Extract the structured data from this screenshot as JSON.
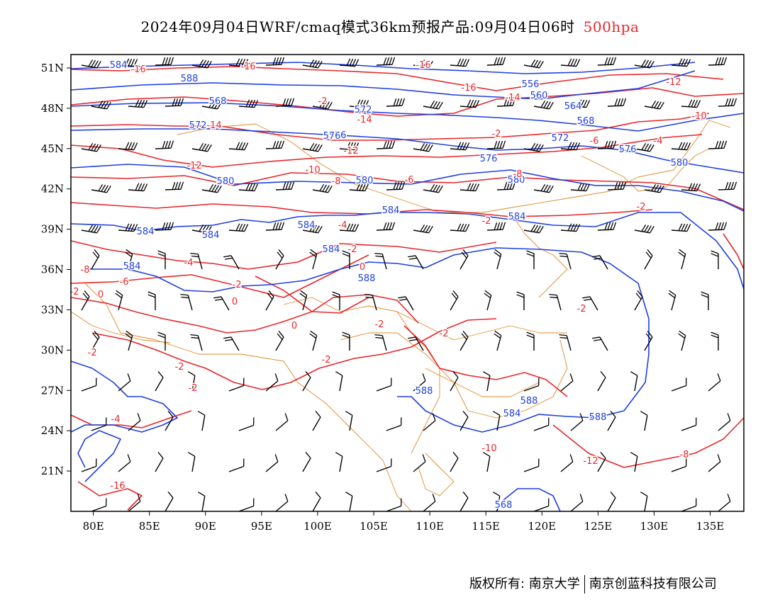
{
  "header": {
    "title": "2024年09月04日WRF/cmaq模式36km预报产品:09月04日06时",
    "level": "500hpa"
  },
  "map": {
    "lon_range": [
      78,
      138
    ],
    "lat_range": [
      18,
      52
    ],
    "x_ticks": [
      "80E",
      "85E",
      "90E",
      "95E",
      "100E",
      "105E",
      "110E",
      "115E",
      "120E",
      "125E",
      "130E",
      "135E"
    ],
    "y_ticks": [
      "51N",
      "48N",
      "45N",
      "42N",
      "39N",
      "36N",
      "33N",
      "30N",
      "27N",
      "24N",
      "21N"
    ],
    "colors": {
      "height_contour": "#1f3fe0",
      "temperature_contour": "#e8262a",
      "wind_barb": "#000000",
      "boundary": "#e0892a"
    },
    "height_labels": [
      "584",
      "588",
      "568",
      "572",
      "576",
      "580",
      "584",
      "584",
      "584",
      "588",
      "588",
      "588",
      "588",
      "584",
      "572",
      "576",
      "580",
      "556",
      "560",
      "564",
      "568",
      "572",
      "576",
      "576",
      "580",
      "584",
      "580",
      "584",
      "584",
      "568",
      "584"
    ],
    "temperature_labels": [
      "-16",
      "-16",
      "-16",
      "-16",
      "-14",
      "-14",
      "-12",
      "-12",
      "-10",
      "-8",
      "-6",
      "-4",
      "-2",
      "-2",
      "0",
      "0",
      "-2",
      "-2",
      "-8",
      "-6",
      "-4",
      "-2",
      "0",
      "-2",
      "0",
      "-2",
      "-2",
      "-2",
      "-2",
      "-2",
      "-4",
      "-10",
      "-12",
      "-8",
      "-8",
      "-6",
      "-4",
      "-10",
      "-12",
      "-14",
      "-2",
      "-2",
      "-2",
      "-16"
    ]
  },
  "footer": {
    "left": "版权所有: 南京大学",
    "right": "南京创蓝科技有限公司"
  }
}
